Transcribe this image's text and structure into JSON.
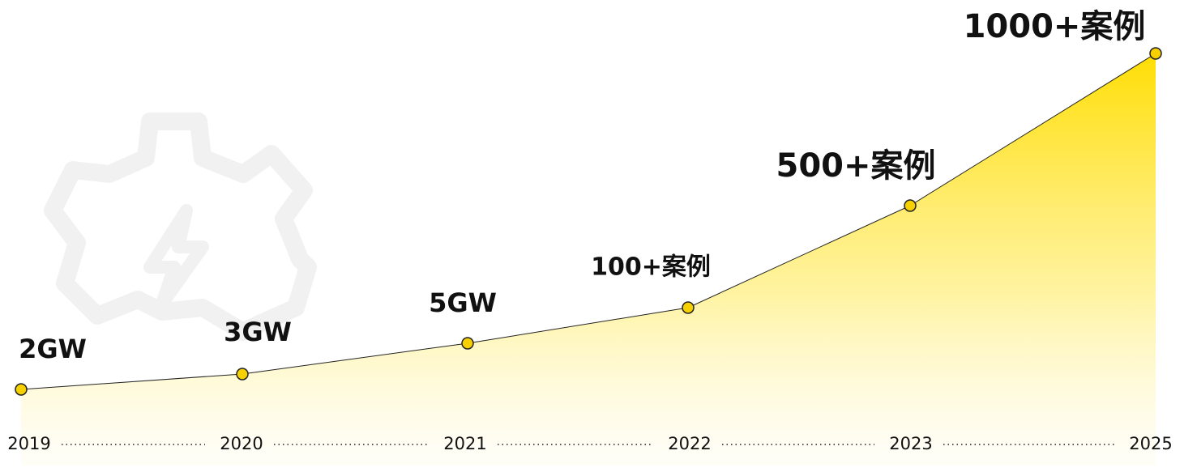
{
  "milestones": [
    {
      "year": "2019",
      "label": "2GW"
    },
    {
      "year": "2020",
      "label": "3GW"
    },
    {
      "year": "2021",
      "label": "5GW"
    },
    {
      "year": "2022",
      "label": "100+案例"
    },
    {
      "year": "2023",
      "label": "500+案例"
    },
    {
      "year": "2025",
      "label": "1000+案例"
    }
  ]
}
